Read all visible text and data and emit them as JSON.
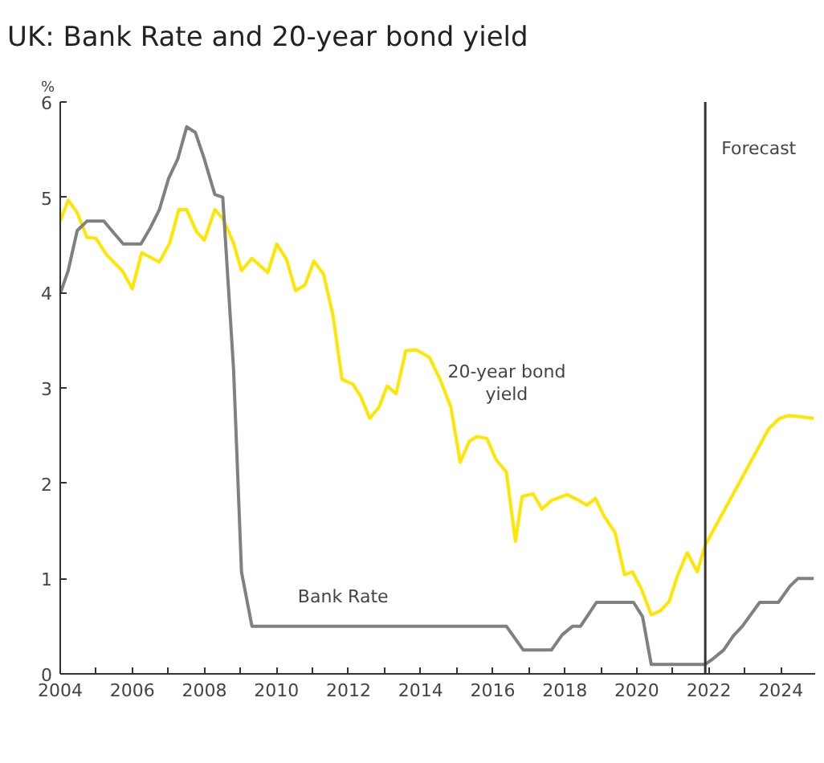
{
  "chart_data": {
    "type": "line",
    "title": "UK: Bank Rate and 20-year bond yield",
    "ylabel": "%",
    "series": [
      {
        "name": "20-year bond yield",
        "color": "#ffe600",
        "x": [
          2004,
          2004.22,
          2004.47,
          2004.74,
          2004.99,
          2005.28,
          2005.72,
          2006,
          2006.26,
          2006.75,
          2007.04,
          2007.29,
          2007.51,
          2007.78,
          2008,
          2008.29,
          2008.51,
          2008.81,
          2009.03,
          2009.32,
          2009.76,
          2010.01,
          2010.28,
          2010.53,
          2010.79,
          2011.04,
          2011.31,
          2011.57,
          2011.82,
          2012.12,
          2012.34,
          2012.59,
          2012.85,
          2013.07,
          2013.32,
          2013.59,
          2013.88,
          2014.25,
          2014.54,
          2014.84,
          2015.1,
          2015.35,
          2015.57,
          2015.84,
          2016.09,
          2016.38,
          2016.63,
          2016.82,
          2017.12,
          2017.37,
          2017.63,
          2018.07,
          2018.34,
          2018.62,
          2018.85,
          2019.1,
          2019.4,
          2019.66,
          2019.88,
          2020.13,
          2020.4,
          2020.65,
          2020.9,
          2021.13,
          2021.4,
          2021.68,
          2021.9,
          2023.66,
          2023.96,
          2024.22,
          2024.47,
          2024.91
        ],
        "values": [
          4.75,
          4.97,
          4.84,
          4.58,
          4.57,
          4.4,
          4.23,
          4.04,
          4.42,
          4.32,
          4.52,
          4.87,
          4.87,
          4.64,
          4.55,
          4.87,
          4.78,
          4.52,
          4.23,
          4.36,
          4.21,
          4.51,
          4.35,
          4.02,
          4.08,
          4.33,
          4.19,
          3.76,
          3.09,
          3.04,
          2.91,
          2.68,
          2.8,
          3.02,
          2.94,
          3.39,
          3.4,
          3.32,
          3.09,
          2.8,
          2.22,
          2.44,
          2.49,
          2.47,
          2.25,
          2.12,
          1.39,
          1.86,
          1.89,
          1.73,
          1.82,
          1.88,
          1.83,
          1.77,
          1.84,
          1.65,
          1.48,
          1.04,
          1.07,
          0.89,
          0.62,
          0.66,
          0.76,
          1.03,
          1.27,
          1.07,
          1.35,
          2.57,
          2.68,
          2.71,
          2.7,
          2.68
        ]
      },
      {
        "name": "Bank Rate",
        "color": "#808080",
        "x": [
          2004,
          2004.22,
          2004.47,
          2004.74,
          2005.21,
          2005.5,
          2005.75,
          2006.24,
          2006.5,
          2006.75,
          2007.01,
          2007.26,
          2007.51,
          2007.75,
          2008,
          2008.29,
          2008.51,
          2008.81,
          2009.03,
          2009.32,
          2016.38,
          2016.85,
          2017.63,
          2017.93,
          2018.22,
          2018.44,
          2018.88,
          2019.91,
          2020.16,
          2020.4,
          2021.9,
          2022.12,
          2022.41,
          2022.68,
          2022.93,
          2023.41,
          2023.93,
          2024.25,
          2024.47,
          2024.91
        ],
        "values": [
          3.99,
          4.23,
          4.65,
          4.75,
          4.75,
          4.62,
          4.51,
          4.51,
          4.68,
          4.87,
          5.2,
          5.4,
          5.74,
          5.68,
          5.4,
          5.03,
          5.0,
          3.2,
          1.07,
          0.5,
          0.5,
          0.25,
          0.25,
          0.41,
          0.5,
          0.5,
          0.75,
          0.75,
          0.6,
          0.1,
          0.1,
          0.16,
          0.25,
          0.4,
          0.5,
          0.75,
          0.75,
          0.92,
          1,
          1
        ]
      }
    ],
    "xlim": [
      2004,
      2024.95
    ],
    "ylim": [
      0,
      6
    ],
    "xticks": [
      2004,
      {
        "value": 2005,
        "label": null
      },
      2006,
      {
        "value": 2007,
        "label": null
      },
      2008,
      {
        "value": 2009,
        "label": null
      },
      2010,
      {
        "value": 2011,
        "label": null
      },
      2012,
      {
        "value": 2013,
        "label": null
      },
      2014,
      {
        "value": 2015,
        "label": null
      },
      2016,
      {
        "value": 2017,
        "label": null
      },
      2018,
      {
        "value": 2019,
        "label": null
      },
      2020,
      {
        "value": 2021,
        "label": null
      },
      2022,
      {
        "value": 2023,
        "label": null
      },
      2024
    ],
    "yticks": [
      0,
      1,
      2,
      3,
      4,
      5,
      6
    ],
    "ref_lines": [
      {
        "axis": "x",
        "value": 2021.9,
        "label": "Forecast",
        "color": "#333333"
      }
    ],
    "grid": false,
    "marker": "none",
    "line_style": "solid"
  }
}
